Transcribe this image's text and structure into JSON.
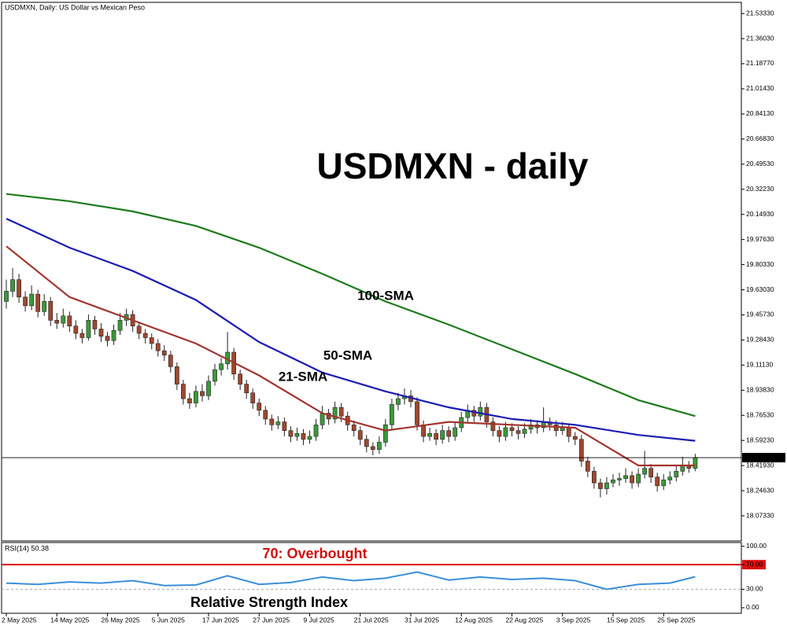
{
  "chart_data": [
    {
      "type": "candlestick",
      "title": "USDMXN - daily",
      "label": "USDMXN, Daily:  US Dollar vs Mexican Peso",
      "up_color": "#3a9a3a",
      "down_color": "#a0472d",
      "xlim": [
        -0.75,
        116.3
      ],
      "ylim": [
        17.9,
        21.61
      ],
      "xticks": [
        {
          "value": 0,
          "label": "2 May 2025"
        },
        {
          "value": 8,
          "label": "14 May 2025"
        },
        {
          "value": 16,
          "label": "26 May 2025"
        },
        {
          "value": 24,
          "label": "5 Jun 2025"
        },
        {
          "value": 32,
          "label": "17 Jun 2025"
        },
        {
          "value": 40,
          "label": "27 Jun 2025"
        },
        {
          "value": 48,
          "label": "9 Jul 2025"
        },
        {
          "value": 56,
          "label": "21 Jul 2025"
        },
        {
          "value": 64,
          "label": "31 Jul 2025"
        },
        {
          "value": 72,
          "label": "12 Aug 2025"
        },
        {
          "value": 80,
          "label": "22 Aug 2025"
        },
        {
          "value": 88,
          "label": "3 Sep 2025"
        },
        {
          "value": 96,
          "label": "15 Sep 2025"
        },
        {
          "value": 104,
          "label": "25 Sep 2025"
        }
      ],
      "yticks": [
        {
          "value": 21.5333,
          "label": "21.53330"
        },
        {
          "value": 21.3603,
          "label": "21.36030"
        },
        {
          "value": 21.1877,
          "label": "21.18770"
        },
        {
          "value": 21.0143,
          "label": "21.01430"
        },
        {
          "value": 20.8413,
          "label": "20.84130"
        },
        {
          "value": 20.6683,
          "label": "20.66830"
        },
        {
          "value": 20.4953,
          "label": "20.49530"
        },
        {
          "value": 20.3223,
          "label": "20.32230"
        },
        {
          "value": 20.1493,
          "label": "20.14930"
        },
        {
          "value": 19.9763,
          "label": "19.97630"
        },
        {
          "value": 19.8033,
          "label": "19.80330"
        },
        {
          "value": 19.6303,
          "label": "19.63030"
        },
        {
          "value": 19.4573,
          "label": "19.45730"
        },
        {
          "value": 19.2843,
          "label": "19.28430"
        },
        {
          "value": 19.1113,
          "label": "19.11130"
        },
        {
          "value": 18.9383,
          "label": "18.93830"
        },
        {
          "value": 18.7653,
          "label": "18.76530"
        },
        {
          "value": 18.5923,
          "label": "18.59230"
        },
        {
          "value": 18.4193,
          "label": "18.41930"
        },
        {
          "value": 18.2463,
          "label": "18.24630"
        },
        {
          "value": 18.0733,
          "label": "18.07330"
        }
      ],
      "candles": [
        [
          19.55,
          19.7,
          19.5,
          19.62
        ],
        [
          19.62,
          19.78,
          19.58,
          19.7
        ],
        [
          19.7,
          19.74,
          19.54,
          19.58
        ],
        [
          19.58,
          19.62,
          19.48,
          19.52
        ],
        [
          19.52,
          19.66,
          19.49,
          19.6
        ],
        [
          19.6,
          19.63,
          19.44,
          19.48
        ],
        [
          19.48,
          19.6,
          19.45,
          19.55
        ],
        [
          19.55,
          19.58,
          19.38,
          19.42
        ],
        [
          19.42,
          19.47,
          19.36,
          19.4
        ],
        [
          19.4,
          19.5,
          19.37,
          19.45
        ],
        [
          19.45,
          19.48,
          19.34,
          19.38
        ],
        [
          19.38,
          19.42,
          19.29,
          19.33
        ],
        [
          19.33,
          19.36,
          19.26,
          19.3
        ],
        [
          19.3,
          19.46,
          19.28,
          19.42
        ],
        [
          19.42,
          19.45,
          19.32,
          19.36
        ],
        [
          19.36,
          19.4,
          19.27,
          19.31
        ],
        [
          19.31,
          19.34,
          19.24,
          19.28
        ],
        [
          19.28,
          19.39,
          19.25,
          19.35
        ],
        [
          19.35,
          19.47,
          19.32,
          19.42
        ],
        [
          19.42,
          19.5,
          19.38,
          19.46
        ],
        [
          19.46,
          19.49,
          19.34,
          19.38
        ],
        [
          19.38,
          19.41,
          19.29,
          19.33
        ],
        [
          19.33,
          19.36,
          19.26,
          19.3
        ],
        [
          19.3,
          19.33,
          19.22,
          19.26
        ],
        [
          19.26,
          19.29,
          19.17,
          19.21
        ],
        [
          19.21,
          19.25,
          19.14,
          19.18
        ],
        [
          19.18,
          19.21,
          19.06,
          19.1
        ],
        [
          19.1,
          19.13,
          18.94,
          18.98
        ],
        [
          18.98,
          19.01,
          18.84,
          18.88
        ],
        [
          18.88,
          18.92,
          18.81,
          18.85
        ],
        [
          18.85,
          18.97,
          18.82,
          18.93
        ],
        [
          18.93,
          18.98,
          18.86,
          18.9
        ],
        [
          18.9,
          19.04,
          18.87,
          19.0
        ],
        [
          19.0,
          19.12,
          18.97,
          19.08
        ],
        [
          19.08,
          19.16,
          19.04,
          19.12
        ],
        [
          19.12,
          19.34,
          19.08,
          19.2
        ],
        [
          19.2,
          19.23,
          19.01,
          19.05
        ],
        [
          19.05,
          19.08,
          18.94,
          18.98
        ],
        [
          18.98,
          19.01,
          18.88,
          18.92
        ],
        [
          18.92,
          18.95,
          18.81,
          18.85
        ],
        [
          18.85,
          18.88,
          18.76,
          18.8
        ],
        [
          18.8,
          18.83,
          18.7,
          18.74
        ],
        [
          18.74,
          18.77,
          18.66,
          18.7
        ],
        [
          18.7,
          18.76,
          18.67,
          18.72
        ],
        [
          18.72,
          18.75,
          18.62,
          18.66
        ],
        [
          18.66,
          18.69,
          18.58,
          18.62
        ],
        [
          18.62,
          18.68,
          18.59,
          18.64
        ],
        [
          18.64,
          18.67,
          18.56,
          18.6
        ],
        [
          18.6,
          18.66,
          18.57,
          18.62
        ],
        [
          18.62,
          18.74,
          18.59,
          18.7
        ],
        [
          18.7,
          18.83,
          18.67,
          18.78
        ],
        [
          18.78,
          18.81,
          18.7,
          18.74
        ],
        [
          18.74,
          18.86,
          18.71,
          18.82
        ],
        [
          18.82,
          18.85,
          18.72,
          18.76
        ],
        [
          18.76,
          18.79,
          18.66,
          18.7
        ],
        [
          18.7,
          18.73,
          18.62,
          18.66
        ],
        [
          18.66,
          18.69,
          18.56,
          18.6
        ],
        [
          18.6,
          18.63,
          18.51,
          18.55
        ],
        [
          18.55,
          18.58,
          18.49,
          18.53
        ],
        [
          18.53,
          18.62,
          18.5,
          18.58
        ],
        [
          18.58,
          18.74,
          18.55,
          18.7
        ],
        [
          18.7,
          18.88,
          18.67,
          18.84
        ],
        [
          18.84,
          18.92,
          18.8,
          18.88
        ],
        [
          18.88,
          18.95,
          18.84,
          18.9
        ],
        [
          18.9,
          18.94,
          18.82,
          18.86
        ],
        [
          18.86,
          18.89,
          18.66,
          18.7
        ],
        [
          18.7,
          18.73,
          18.58,
          18.62
        ],
        [
          18.62,
          18.68,
          18.59,
          18.64
        ],
        [
          18.64,
          18.67,
          18.56,
          18.6
        ],
        [
          18.6,
          18.7,
          18.57,
          18.66
        ],
        [
          18.66,
          18.69,
          18.58,
          18.62
        ],
        [
          18.62,
          18.72,
          18.59,
          18.68
        ],
        [
          18.68,
          18.79,
          18.65,
          18.75
        ],
        [
          18.75,
          18.84,
          18.72,
          18.8
        ],
        [
          18.8,
          18.83,
          18.72,
          18.76
        ],
        [
          18.76,
          18.86,
          18.73,
          18.82
        ],
        [
          18.82,
          18.85,
          18.68,
          18.72
        ],
        [
          18.72,
          18.75,
          18.62,
          18.66
        ],
        [
          18.66,
          18.69,
          18.58,
          18.62
        ],
        [
          18.62,
          18.72,
          18.59,
          18.68
        ],
        [
          18.68,
          18.71,
          18.62,
          18.66
        ],
        [
          18.66,
          18.69,
          18.6,
          18.64
        ],
        [
          18.64,
          18.71,
          18.61,
          18.67
        ],
        [
          18.67,
          18.74,
          18.64,
          18.7
        ],
        [
          18.7,
          18.73,
          18.64,
          18.68
        ],
        [
          18.68,
          18.82,
          18.65,
          18.72
        ],
        [
          18.72,
          18.75,
          18.66,
          18.7
        ],
        [
          18.7,
          18.73,
          18.62,
          18.66
        ],
        [
          18.66,
          18.72,
          18.63,
          18.68
        ],
        [
          18.68,
          18.71,
          18.58,
          18.62
        ],
        [
          18.62,
          18.65,
          18.56,
          18.6
        ],
        [
          18.6,
          18.63,
          18.41,
          18.45
        ],
        [
          18.45,
          18.48,
          18.34,
          18.38
        ],
        [
          18.38,
          18.41,
          18.26,
          18.3
        ],
        [
          18.3,
          18.33,
          18.2,
          18.26
        ],
        [
          18.26,
          18.34,
          18.22,
          18.3
        ],
        [
          18.3,
          18.36,
          18.27,
          18.32
        ],
        [
          18.32,
          18.37,
          18.28,
          18.33
        ],
        [
          18.33,
          18.4,
          18.3,
          18.35
        ],
        [
          18.35,
          18.38,
          18.26,
          18.3
        ],
        [
          18.3,
          18.4,
          18.27,
          18.36
        ],
        [
          18.36,
          18.52,
          18.33,
          18.4
        ],
        [
          18.4,
          18.43,
          18.3,
          18.34
        ],
        [
          18.34,
          18.37,
          18.24,
          18.28
        ],
        [
          18.28,
          18.36,
          18.25,
          18.32
        ],
        [
          18.32,
          18.38,
          18.29,
          18.34
        ],
        [
          18.34,
          18.42,
          18.31,
          18.38
        ],
        [
          18.38,
          18.48,
          18.35,
          18.42
        ],
        [
          18.42,
          18.45,
          18.37,
          18.4
        ],
        [
          18.4,
          18.5,
          18.38,
          18.47377
        ]
      ],
      "series": [
        {
          "name": "100-SMA",
          "color": "#1e7b1e",
          "x": [
            0,
            10,
            20,
            30,
            40,
            50,
            60,
            70,
            80,
            90,
            100,
            109
          ],
          "values": [
            20.29,
            20.24,
            20.17,
            20.07,
            19.92,
            19.74,
            19.55,
            19.39,
            19.22,
            19.05,
            18.87,
            18.76
          ]
        },
        {
          "name": "50-SMA",
          "color": "#1c1cb4",
          "x": [
            0,
            10,
            20,
            30,
            40,
            50,
            60,
            70,
            80,
            90,
            100,
            109
          ],
          "values": [
            20.12,
            19.92,
            19.76,
            19.56,
            19.27,
            19.06,
            18.93,
            18.82,
            18.74,
            18.7,
            18.63,
            18.59
          ]
        },
        {
          "name": "21-SMA",
          "color": "#a2342c",
          "x": [
            0,
            10,
            20,
            30,
            40,
            50,
            60,
            70,
            80,
            90,
            100,
            109
          ],
          "values": [
            19.93,
            19.58,
            19.42,
            19.26,
            19.04,
            18.78,
            18.66,
            18.72,
            18.7,
            18.68,
            18.42,
            18.42
          ]
        }
      ]
    },
    {
      "type": "line",
      "title": "RSI(14) 50.38",
      "annotation": "70: Overbought",
      "ylim": [
        -9,
        106
      ],
      "yticks": [
        {
          "value": 100,
          "label": "100.00"
        },
        {
          "value": 70,
          "label": "70.00"
        },
        {
          "value": 30,
          "label": "30.00"
        },
        {
          "value": 0,
          "label": "0.00"
        }
      ],
      "levels": [
        {
          "value": 70,
          "color": "#e01010"
        },
        {
          "value": 30,
          "color": "#aaaaaa"
        }
      ],
      "series": [
        {
          "name": "Relative Strength Index",
          "color": "#3a8fd8",
          "x": [
            0,
            5,
            10,
            15,
            20,
            25,
            30,
            35,
            40,
            45,
            50,
            55,
            60,
            65,
            70,
            75,
            80,
            85,
            90,
            95,
            100,
            105,
            109
          ],
          "values": [
            40,
            38,
            42,
            40,
            44,
            36,
            37,
            52,
            38,
            41,
            50,
            44,
            48,
            58,
            45,
            50,
            46,
            48,
            44,
            30,
            38,
            40,
            50.38
          ]
        }
      ]
    }
  ]
}
